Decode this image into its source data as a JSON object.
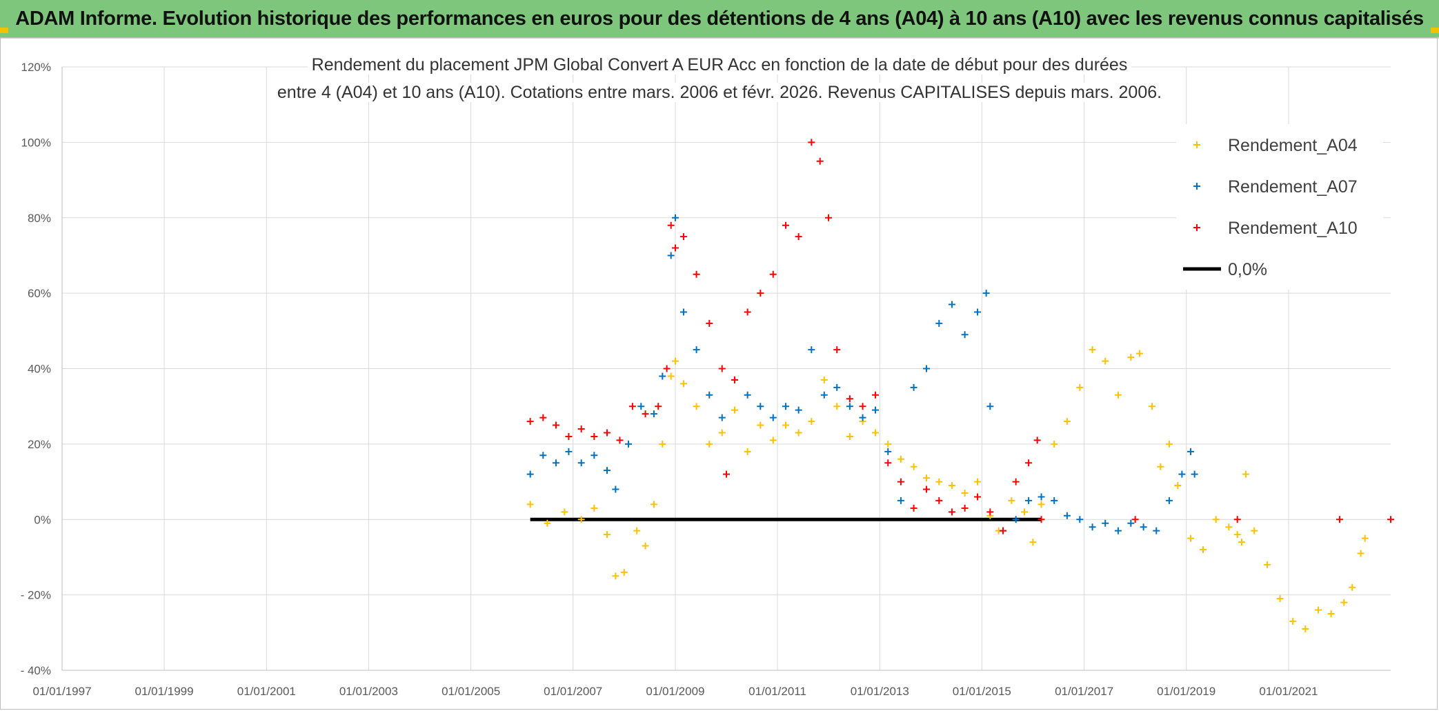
{
  "banner": {
    "title": "ADAM Informe. Evolution historique des performances en euros pour des détentions de 4 ans (A04) à 10 ans (A10) avec les revenus connus capitalisés"
  },
  "colors": {
    "banner_bg": "#7dc67b",
    "accent_corner": "#f2c200",
    "A04": "#ffc000",
    "A07": "#0070c0",
    "A10": "#ff0000",
    "zero": "#000000"
  },
  "chart_data": {
    "type": "scatter",
    "title_line1": "Rendement du placement JPM Global Convert A EUR Acc en fonction de la date de début pour des durées",
    "title_line2": "entre 4 (A04) et 10 ans (A10). Cotations entre mars. 2006 et févr. 2026. Revenus CAPITALISES depuis mars. 2006.",
    "xlabel": "",
    "ylabel": "",
    "x_range": [
      "1997-01-01",
      "2023-01-01"
    ],
    "y_range": [
      -40,
      120
    ],
    "y_ticks": [
      -40,
      -20,
      0,
      20,
      40,
      60,
      80,
      100,
      120
    ],
    "y_tick_labels": [
      "- 40%",
      "- 20%",
      "0%",
      "20%",
      "40%",
      "60%",
      "80%",
      "100%",
      "120%"
    ],
    "x_ticks": [
      "1997-01-01",
      "1999-01-01",
      "2001-01-01",
      "2003-01-01",
      "2005-01-01",
      "2007-01-01",
      "2009-01-01",
      "2011-01-01",
      "2013-01-01",
      "2015-01-01",
      "2017-01-01",
      "2019-01-01",
      "2021-01-01"
    ],
    "x_tick_labels": [
      "01/01/1997",
      "01/01/1999",
      "01/01/2001",
      "01/01/2003",
      "01/01/2005",
      "01/01/2007",
      "01/01/2009",
      "01/01/2011",
      "01/01/2013",
      "01/01/2015",
      "01/01/2017",
      "01/01/2019",
      "01/01/2021"
    ],
    "grid": true,
    "legend_position": "top-right",
    "marker": "+",
    "series": [
      {
        "name": "Rendement_A04",
        "color": "#ffc000",
        "x": [
          "2006-03-01",
          "2006-07-01",
          "2006-11-01",
          "2007-03-01",
          "2007-06-01",
          "2007-09-01",
          "2007-11-01",
          "2008-01-01",
          "2008-04-01",
          "2008-06-01",
          "2008-08-01",
          "2008-10-01",
          "2008-12-01",
          "2009-01-01",
          "2009-03-01",
          "2009-06-01",
          "2009-09-01",
          "2009-12-01",
          "2010-03-01",
          "2010-06-01",
          "2010-09-01",
          "2010-12-01",
          "2011-03-01",
          "2011-06-01",
          "2011-09-01",
          "2011-12-01",
          "2012-03-01",
          "2012-06-01",
          "2012-09-01",
          "2012-12-01",
          "2013-03-01",
          "2013-06-01",
          "2013-09-01",
          "2013-12-01",
          "2014-03-01",
          "2014-06-01",
          "2014-09-01",
          "2014-12-01",
          "2015-03-01",
          "2015-05-01",
          "2015-08-01",
          "2015-11-01",
          "2016-01-01",
          "2016-03-01",
          "2016-06-01",
          "2016-09-01",
          "2016-12-01",
          "2017-03-01",
          "2017-06-01",
          "2017-09-01",
          "2017-12-01",
          "2018-02-01",
          "2018-05-01",
          "2018-07-01",
          "2018-09-01",
          "2018-11-01",
          "2019-02-01",
          "2019-05-01",
          "2019-08-01",
          "2019-11-01",
          "2020-01-01",
          "2020-02-01",
          "2020-03-01",
          "2020-05-01",
          "2020-08-01",
          "2020-11-01",
          "2021-02-01",
          "2021-05-01",
          "2021-08-01",
          "2021-11-01",
          "2022-02-01",
          "2022-04-01",
          "2022-06-01",
          "2022-07-01"
        ],
        "y": [
          4,
          -1,
          2,
          0,
          3,
          -4,
          -15,
          -14,
          -3,
          -7,
          4,
          20,
          38,
          42,
          36,
          30,
          20,
          23,
          29,
          18,
          25,
          21,
          25,
          23,
          26,
          37,
          30,
          22,
          26,
          23,
          20,
          16,
          14,
          11,
          10,
          9,
          7,
          10,
          1,
          -3,
          5,
          2,
          -6,
          4,
          20,
          26,
          35,
          45,
          42,
          33,
          43,
          44,
          30,
          14,
          20,
          9,
          -5,
          -8,
          0,
          -2,
          -4,
          -6,
          12,
          -3,
          -12,
          -21,
          -27,
          -29,
          -24,
          -25,
          -22,
          -18,
          -9,
          -5
        ]
      },
      {
        "name": "Rendement_A07",
        "color": "#0070c0",
        "x": [
          "2006-03-01",
          "2006-06-01",
          "2006-09-01",
          "2006-12-01",
          "2007-03-01",
          "2007-06-01",
          "2007-09-01",
          "2007-11-01",
          "2008-02-01",
          "2008-05-01",
          "2008-08-01",
          "2008-10-01",
          "2008-12-01",
          "2009-01-01",
          "2009-03-01",
          "2009-06-01",
          "2009-09-01",
          "2009-12-01",
          "2010-03-01",
          "2010-06-01",
          "2010-09-01",
          "2010-12-01",
          "2011-03-01",
          "2011-06-01",
          "2011-09-01",
          "2011-12-01",
          "2012-03-01",
          "2012-06-01",
          "2012-09-01",
          "2012-12-01",
          "2013-03-01",
          "2013-06-01",
          "2013-09-01",
          "2013-12-01",
          "2014-03-01",
          "2014-06-01",
          "2014-09-01",
          "2014-12-01",
          "2015-02-01",
          "2015-03-01",
          "2015-06-01",
          "2015-09-01",
          "2015-12-01",
          "2016-03-01",
          "2016-06-01",
          "2016-09-01",
          "2016-12-01",
          "2017-03-01",
          "2017-06-01",
          "2017-09-01",
          "2017-12-01",
          "2018-03-01",
          "2018-06-01",
          "2018-09-01",
          "2018-12-01",
          "2019-02-01",
          "2019-03-01"
        ],
        "y": [
          12,
          17,
          15,
          18,
          15,
          17,
          13,
          8,
          20,
          30,
          28,
          38,
          70,
          80,
          55,
          45,
          33,
          27,
          37,
          33,
          30,
          27,
          30,
          29,
          45,
          33,
          35,
          30,
          27,
          29,
          18,
          5,
          35,
          40,
          52,
          57,
          49,
          55,
          60,
          30,
          -3,
          0,
          5,
          6,
          5,
          1,
          0,
          -2,
          -1,
          -3,
          -1,
          -2,
          -3,
          5,
          12,
          18,
          12
        ]
      },
      {
        "name": "Rendement_A10",
        "color": "#ff0000",
        "x": [
          "2006-03-01",
          "2006-06-01",
          "2006-09-01",
          "2006-12-01",
          "2007-03-01",
          "2007-06-01",
          "2007-09-01",
          "2007-12-01",
          "2008-03-01",
          "2008-06-01",
          "2008-09-01",
          "2008-11-01",
          "2008-12-01",
          "2009-01-01",
          "2009-03-01",
          "2009-06-01",
          "2009-09-01",
          "2009-12-01",
          "2010-01-01",
          "2010-03-01",
          "2010-06-01",
          "2010-09-01",
          "2010-12-01",
          "2011-03-01",
          "2011-06-01",
          "2011-09-01",
          "2011-11-01",
          "2012-01-01",
          "2012-03-01",
          "2012-06-01",
          "2012-09-01",
          "2012-12-01",
          "2013-03-01",
          "2013-06-01",
          "2013-09-01",
          "2013-12-01",
          "2014-03-01",
          "2014-06-01",
          "2014-09-01",
          "2014-12-01",
          "2015-03-01",
          "2015-06-01",
          "2015-09-01",
          "2015-12-01",
          "2016-02-01",
          "2016-03-01",
          "2018-01-01",
          "2020-01-01",
          "2022-01-01",
          "2023-01-01"
        ],
        "y": [
          26,
          27,
          25,
          22,
          24,
          22,
          23,
          21,
          30,
          28,
          30,
          40,
          78,
          72,
          75,
          65,
          52,
          40,
          12,
          37,
          55,
          60,
          65,
          78,
          75,
          100,
          95,
          80,
          45,
          32,
          30,
          33,
          15,
          10,
          3,
          8,
          5,
          2,
          3,
          6,
          2,
          -3,
          10,
          15,
          21,
          0,
          0,
          0,
          0,
          0
        ]
      }
    ],
    "reference_line": {
      "name": "0,0%",
      "color": "#000000",
      "y": 0,
      "x_start": "2006-03-01",
      "x_end": "2016-03-01"
    },
    "legend_labels": [
      "Rendement_A04",
      "Rendement_A07",
      "Rendement_A10",
      "0,0%"
    ]
  }
}
